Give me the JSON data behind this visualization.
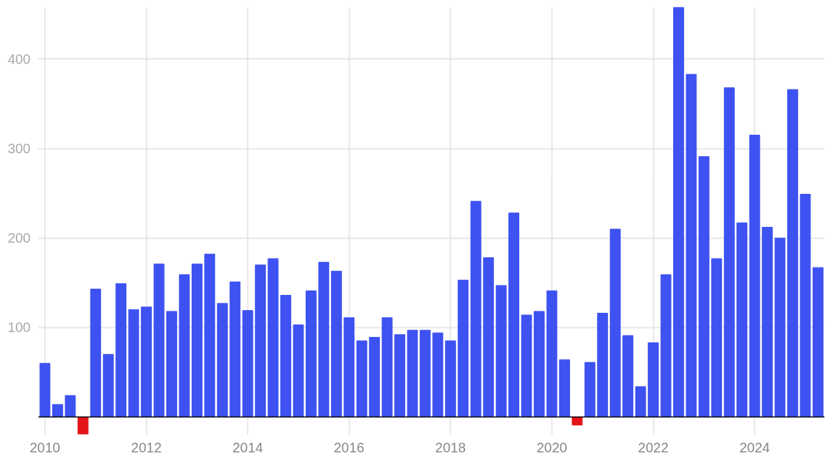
{
  "chart_data": {
    "type": "bar",
    "x": [
      2010,
      2010.25,
      2010.5,
      2010.75,
      2011,
      2011.25,
      2011.5,
      2011.75,
      2012,
      2012.25,
      2012.5,
      2012.75,
      2013,
      2013.25,
      2013.5,
      2013.75,
      2014,
      2014.25,
      2014.5,
      2014.75,
      2015,
      2015.25,
      2015.5,
      2015.75,
      2016,
      2016.25,
      2016.5,
      2016.75,
      2017,
      2017.25,
      2017.5,
      2017.75,
      2018,
      2018.25,
      2018.5,
      2018.75,
      2019,
      2019.25,
      2019.5,
      2019.75,
      2020,
      2020.25,
      2020.5,
      2020.75,
      2021,
      2021.25,
      2021.5,
      2021.75,
      2022,
      2022.25,
      2022.5,
      2022.75,
      2023,
      2023.25,
      2023.5,
      2023.75,
      2024,
      2024.25,
      2024.5,
      2024.75,
      2025,
      2025.25
    ],
    "values": [
      60,
      14,
      24,
      -19,
      143,
      70,
      149,
      120,
      123,
      171,
      118,
      159,
      171,
      182,
      127,
      151,
      119,
      170,
      177,
      136,
      103,
      141,
      173,
      163,
      111,
      85,
      89,
      111,
      92,
      97,
      97,
      94,
      85,
      153,
      241,
      178,
      147,
      228,
      114,
      118,
      141,
      64,
      -9,
      61,
      116,
      210,
      91,
      34,
      83,
      159,
      458,
      383,
      291,
      177,
      368,
      217,
      315,
      212,
      200,
      366,
      249,
      167
    ],
    "colors": [
      "#3d52f0",
      "#3d52f0",
      "#3d52f0",
      "#e3151a",
      "#3d52f0",
      "#3d52f0",
      "#3d52f0",
      "#3d52f0",
      "#3d52f0",
      "#3d52f0",
      "#3d52f0",
      "#3d52f0",
      "#3d52f0",
      "#3d52f0",
      "#3d52f0",
      "#3d52f0",
      "#3d52f0",
      "#3d52f0",
      "#3d52f0",
      "#3d52f0",
      "#3d52f0",
      "#3d52f0",
      "#3d52f0",
      "#3d52f0",
      "#3d52f0",
      "#3d52f0",
      "#3d52f0",
      "#3d52f0",
      "#3d52f0",
      "#3d52f0",
      "#3d52f0",
      "#3d52f0",
      "#3d52f0",
      "#3d52f0",
      "#3d52f0",
      "#3d52f0",
      "#3d52f0",
      "#3d52f0",
      "#3d52f0",
      "#3d52f0",
      "#3d52f0",
      "#3d52f0",
      "#e3151a",
      "#3d52f0",
      "#3d52f0",
      "#3d52f0",
      "#3d52f0",
      "#3d52f0",
      "#3d52f0",
      "#3d52f0",
      "#3d52f0",
      "#3d52f0",
      "#3d52f0",
      "#3d52f0",
      "#3d52f0",
      "#3d52f0",
      "#3d52f0",
      "#3d52f0",
      "#3d52f0",
      "#3d52f0",
      "#3d52f0",
      "#3d52f0"
    ],
    "xlim": [
      2009.865,
      2025.38
    ],
    "ylim": [
      -20,
      458
    ],
    "xticks": [
      2010,
      2012,
      2014,
      2016,
      2018,
      2020,
      2022,
      2024
    ],
    "yticks": [
      100,
      200,
      300,
      400
    ],
    "grid": true
  }
}
